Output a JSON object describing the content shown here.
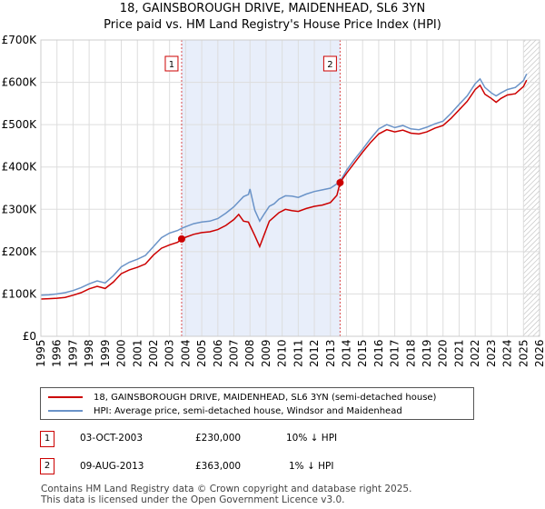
{
  "title": "18, GAINSBOROUGH DRIVE, MAIDENHEAD, SL6 3YN",
  "subtitle": "Price paid vs. HM Land Registry's House Price Index (HPI)",
  "colors": {
    "property": "#cc0000",
    "hpi": "#6a93c8",
    "shade": "#e8eefa",
    "grid": "#dddddd"
  },
  "legend": {
    "property_label": "18, GAINSBOROUGH DRIVE, MAIDENHEAD, SL6 3YN (semi-detached house)",
    "hpi_label": "HPI: Average price, semi-detached house, Windsor and Maidenhead"
  },
  "transactions": [
    {
      "num": "1",
      "date": "03-OCT-2003",
      "price": "£230,000",
      "hpi_diff": "10% ↓ HPI"
    },
    {
      "num": "2",
      "date": "09-AUG-2013",
      "price": "£363,000",
      "hpi_diff": "1% ↓ HPI"
    }
  ],
  "footer": {
    "line1": "Contains HM Land Registry data © Crown copyright and database right 2025.",
    "line2": "This data is licensed under the Open Government Licence v3.0."
  },
  "chart_data": {
    "type": "line",
    "xlim": [
      1995,
      2026
    ],
    "ylim": [
      0,
      700000
    ],
    "yticks": [
      0,
      100000,
      200000,
      300000,
      400000,
      500000,
      600000,
      700000
    ],
    "ytick_labels": [
      "£0",
      "£100K",
      "£200K",
      "£300K",
      "£400K",
      "£500K",
      "£600K",
      "£700K"
    ],
    "xticks": [
      "1995",
      "1996",
      "1997",
      "1998",
      "1999",
      "2000",
      "2001",
      "2002",
      "2003",
      "2004",
      "2005",
      "2006",
      "2007",
      "2008",
      "2009",
      "2010",
      "2011",
      "2012",
      "2013",
      "2014",
      "2015",
      "2016",
      "2017",
      "2018",
      "2019",
      "2020",
      "2021",
      "2022",
      "2023",
      "2024",
      "2025",
      "2026"
    ],
    "shaded_range": [
      2003.75,
      2013.6
    ],
    "hatch_from": 2025.0,
    "markers": [
      {
        "label": "1",
        "x": 2003.75,
        "y": 230000
      },
      {
        "label": "2",
        "x": 2013.6,
        "y": 363000
      }
    ],
    "series": [
      {
        "name": "18, GAINSBOROUGH DRIVE, MAIDENHEAD, SL6 3YN (semi-detached house)",
        "x": [
          1995,
          1995.5,
          1996,
          1996.5,
          1997,
          1997.5,
          1998,
          1998.5,
          1999,
          1999.5,
          2000,
          2000.5,
          2001,
          2001.5,
          2002,
          2002.5,
          2003,
          2003.5,
          2003.75,
          2004,
          2004.5,
          2005,
          2005.5,
          2006,
          2006.5,
          2007,
          2007.3,
          2007.6,
          2007.9,
          2008,
          2008.3,
          2008.6,
          2008.9,
          2009.2,
          2009.5,
          2009.8,
          2010.2,
          2010.6,
          2011,
          2011.5,
          2012,
          2012.5,
          2013,
          2013.4,
          2013.6,
          2014,
          2014.5,
          2015,
          2015.5,
          2016,
          2016.5,
          2017,
          2017.5,
          2018,
          2018.5,
          2019,
          2019.5,
          2020,
          2020.5,
          2021,
          2021.5,
          2022,
          2022.3,
          2022.6,
          2023,
          2023.3,
          2023.6,
          2024,
          2024.5,
          2025,
          2025.2
        ],
        "values": [
          88000,
          89000,
          90000,
          92000,
          97000,
          103000,
          112000,
          118000,
          113000,
          128000,
          148000,
          157000,
          163000,
          171000,
          192000,
          208000,
          216000,
          222000,
          230000,
          234000,
          241000,
          245000,
          247000,
          252000,
          262000,
          276000,
          288000,
          272000,
          270000,
          262000,
          238000,
          212000,
          242000,
          272000,
          282000,
          292000,
          300000,
          297000,
          295000,
          302000,
          307000,
          310000,
          316000,
          333000,
          363000,
          385000,
          410000,
          435000,
          458000,
          478000,
          488000,
          483000,
          487000,
          480000,
          478000,
          483000,
          492000,
          498000,
          515000,
          535000,
          555000,
          583000,
          593000,
          572000,
          562000,
          553000,
          562000,
          570000,
          573000,
          590000,
          605000
        ]
      },
      {
        "name": "HPI: Average price, semi-detached house, Windsor and Maidenhead",
        "x": [
          1995,
          1995.5,
          1996,
          1996.5,
          1997,
          1997.5,
          1998,
          1998.5,
          1999,
          1999.5,
          2000,
          2000.5,
          2001,
          2001.5,
          2002,
          2002.5,
          2003,
          2003.5,
          2003.75,
          2004,
          2004.5,
          2005,
          2005.5,
          2006,
          2006.5,
          2007,
          2007.3,
          2007.6,
          2007.9,
          2008,
          2008.3,
          2008.6,
          2008.9,
          2009.2,
          2009.5,
          2009.8,
          2010.2,
          2010.6,
          2011,
          2011.5,
          2012,
          2012.5,
          2013,
          2013.4,
          2013.6,
          2014,
          2014.5,
          2015,
          2015.5,
          2016,
          2016.5,
          2017,
          2017.5,
          2018,
          2018.5,
          2019,
          2019.5,
          2020,
          2020.5,
          2021,
          2021.5,
          2022,
          2022.3,
          2022.6,
          2023,
          2023.3,
          2023.6,
          2024,
          2024.5,
          2025,
          2025.2
        ],
        "values": [
          97000,
          98000,
          100000,
          103000,
          108000,
          115000,
          124000,
          131000,
          126000,
          143000,
          164000,
          175000,
          182000,
          191000,
          212000,
          233000,
          244000,
          250000,
          255000,
          259000,
          266000,
          270000,
          272000,
          278000,
          291000,
          306000,
          318000,
          330000,
          335000,
          348000,
          298000,
          272000,
          290000,
          307000,
          313000,
          324000,
          332000,
          331000,
          328000,
          336000,
          342000,
          346000,
          350000,
          360000,
          366000,
          392000,
          418000,
          442000,
          467000,
          490000,
          500000,
          493000,
          498000,
          490000,
          488000,
          494000,
          502000,
          508000,
          527000,
          548000,
          568000,
          597000,
          608000,
          588000,
          575000,
          568000,
          575000,
          583000,
          588000,
          604000,
          620000
        ]
      }
    ]
  }
}
